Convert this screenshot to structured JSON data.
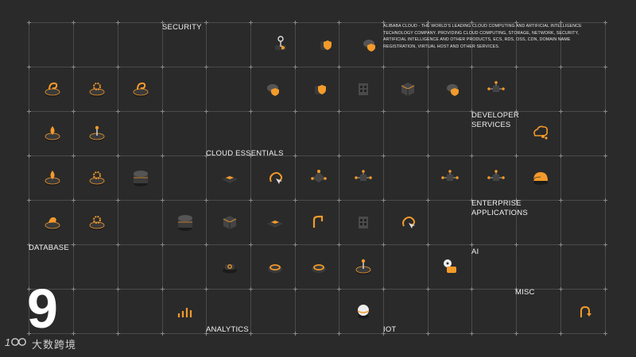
{
  "labels": {
    "security": "SECURITY",
    "cloud_essentials": "CLOUD ESSENTIALS",
    "developer_services": "DEVELOPER\nSERVICES",
    "enterprise_applications": "ENTERPRISE\nAPPLICATIONS",
    "database": "DATABASE",
    "ai": "AI",
    "misc": "MISC",
    "analytics": "ANALYTICS",
    "iot": "IOT"
  },
  "description": "ALIBABA CLOUD - THE WORLD'S LEADING CLOUD COMPUTING AND ARTIFICIAL INTELLIGENCE TECHNOLOGY COMPANY. PROVIDING CLOUD COMPUTING, STORAGE, NETWORK, SECURITY, ARTIFICIAL INTELLIGENCE AND OTHER PRODUCTS, ECS, RDS, OSS, CDN, DOMAIN NAME REGISTRATION, VIRTUAL HOST AND OTHER SERVICES.",
  "page_number": "9",
  "logo": {
    "mark": "100",
    "text": "大数跨境"
  },
  "colors": {
    "background": "#2a2a2a",
    "accent": "#f39a2b",
    "icon_dark": "#3a3a3a",
    "grid": "#4a4a4a"
  }
}
